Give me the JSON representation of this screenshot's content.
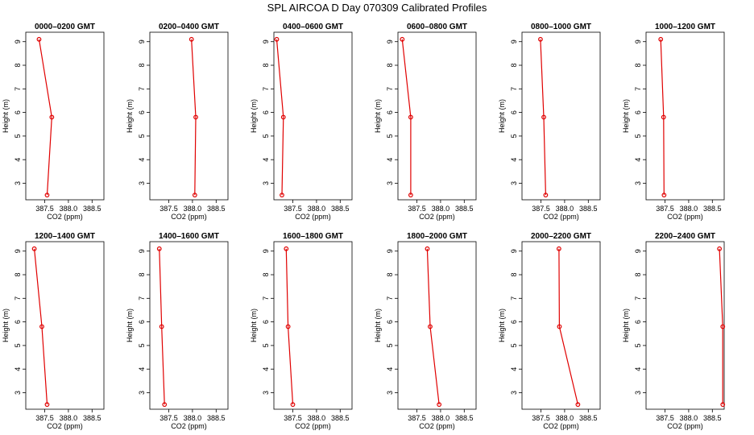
{
  "title": "SPL AIRCOA D  Day 070309  Calibrated Profiles",
  "xlabel": "CO2 (ppm)",
  "ylabel": "Height (m)",
  "colors": {
    "series": "#e00000",
    "axis": "#000000",
    "background": "#ffffff"
  },
  "chart_data": {
    "type": "line",
    "title": "SPL AIRCOA D  Day 070309  Calibrated Profiles",
    "xlabel": "CO2 (ppm)",
    "ylabel": "Height (m)",
    "xlim": [
      387.1,
      388.75
    ],
    "ylim": [
      2.3,
      9.4
    ],
    "xticks": [
      "387.5",
      "388.0",
      "388.5"
    ],
    "xtick_values": [
      387.5,
      388.0,
      388.5
    ],
    "yticks": [
      "3",
      "4",
      "5",
      "6",
      "7",
      "8",
      "9"
    ],
    "ytick_values": [
      3,
      4,
      5,
      6,
      7,
      8,
      9
    ],
    "grid": false,
    "legend": "none",
    "panels": [
      {
        "name": "0000–0200 GMT",
        "points": [
          {
            "x": 387.55,
            "y": 2.5
          },
          {
            "x": 387.65,
            "y": 5.8
          },
          {
            "x": 387.38,
            "y": 9.1
          }
        ]
      },
      {
        "name": "0200–0400 GMT",
        "points": [
          {
            "x": 388.05,
            "y": 2.5
          },
          {
            "x": 388.07,
            "y": 5.8
          },
          {
            "x": 387.98,
            "y": 9.1
          }
        ]
      },
      {
        "name": "0400–0600 GMT",
        "points": [
          {
            "x": 387.27,
            "y": 2.5
          },
          {
            "x": 387.3,
            "y": 5.8
          },
          {
            "x": 387.16,
            "y": 9.1
          }
        ]
      },
      {
        "name": "0600–0800 GMT",
        "points": [
          {
            "x": 387.37,
            "y": 2.5
          },
          {
            "x": 387.37,
            "y": 5.8
          },
          {
            "x": 387.19,
            "y": 9.1
          }
        ]
      },
      {
        "name": "0800–1000 GMT",
        "points": [
          {
            "x": 387.6,
            "y": 2.5
          },
          {
            "x": 387.56,
            "y": 5.8
          },
          {
            "x": 387.49,
            "y": 9.1
          }
        ]
      },
      {
        "name": "1000–1200 GMT",
        "points": [
          {
            "x": 387.48,
            "y": 2.5
          },
          {
            "x": 387.47,
            "y": 5.8
          },
          {
            "x": 387.41,
            "y": 9.1
          }
        ]
      },
      {
        "name": "1200–1400 GMT",
        "points": [
          {
            "x": 387.55,
            "y": 2.5
          },
          {
            "x": 387.44,
            "y": 5.8
          },
          {
            "x": 387.28,
            "y": 9.1
          }
        ]
      },
      {
        "name": "1400–1600 GMT",
        "points": [
          {
            "x": 387.41,
            "y": 2.5
          },
          {
            "x": 387.35,
            "y": 5.8
          },
          {
            "x": 387.3,
            "y": 9.1
          }
        ]
      },
      {
        "name": "1600–1800 GMT",
        "points": [
          {
            "x": 387.5,
            "y": 2.5
          },
          {
            "x": 387.4,
            "y": 5.8
          },
          {
            "x": 387.36,
            "y": 9.1
          }
        ]
      },
      {
        "name": "1800–2000 GMT",
        "points": [
          {
            "x": 387.97,
            "y": 2.5
          },
          {
            "x": 387.78,
            "y": 5.8
          },
          {
            "x": 387.72,
            "y": 9.1
          }
        ]
      },
      {
        "name": "2000–2200 GMT",
        "points": [
          {
            "x": 388.28,
            "y": 2.5
          },
          {
            "x": 387.89,
            "y": 5.8
          },
          {
            "x": 387.88,
            "y": 9.1
          }
        ]
      },
      {
        "name": "2200–2400 GMT",
        "points": [
          {
            "x": 388.72,
            "y": 2.5
          },
          {
            "x": 388.72,
            "y": 5.8
          },
          {
            "x": 388.65,
            "y": 9.1
          }
        ]
      }
    ]
  }
}
